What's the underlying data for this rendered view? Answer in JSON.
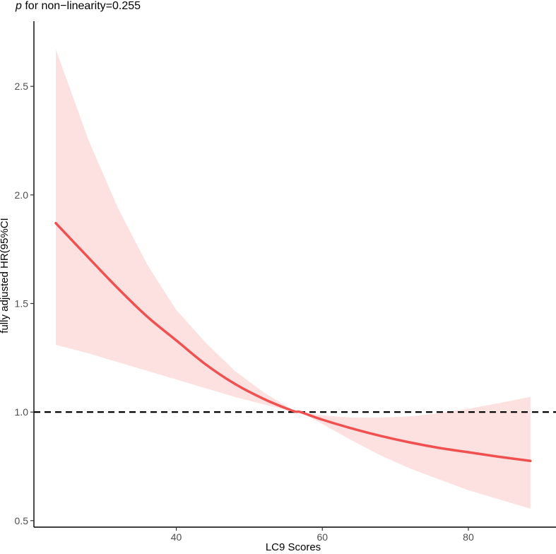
{
  "chart_data": {
    "type": "line",
    "title_prefix": "p",
    "title_rest": " for non−linearity=0.255",
    "xlabel": "LC9 Scores",
    "ylabel": "fully adjusted HR(95%CI",
    "xlim": [
      20.5,
      92
    ],
    "ylim": [
      0.47,
      2.8
    ],
    "x_ticks": [
      40,
      60,
      80
    ],
    "x_tick_labels": [
      "40",
      "60",
      "80"
    ],
    "y_ticks": [
      0.5,
      1.0,
      1.5,
      2.0,
      2.5
    ],
    "y_tick_labels": [
      "0.5",
      "1.0",
      "1.5",
      "2.0",
      "2.5"
    ],
    "reference_line": {
      "y": 1.0,
      "style": "dashed",
      "color": "#000000"
    },
    "colors": {
      "line": "#f0504f",
      "band": "#fde0e0"
    },
    "grid": false,
    "series": [
      {
        "x": [
          23.5,
          28,
          32,
          36,
          40,
          44,
          48,
          52,
          56,
          57,
          60,
          64,
          68,
          72,
          76,
          80,
          84,
          88.5
        ],
        "y": [
          1.87,
          1.71,
          1.57,
          1.44,
          1.33,
          1.22,
          1.13,
          1.06,
          1.005,
          1.0,
          0.965,
          0.925,
          0.89,
          0.86,
          0.835,
          0.815,
          0.795,
          0.775
        ],
        "lower": [
          1.31,
          1.27,
          1.23,
          1.19,
          1.15,
          1.11,
          1.07,
          1.035,
          1.003,
          1.0,
          0.945,
          0.87,
          0.8,
          0.74,
          0.69,
          0.64,
          0.6,
          0.555
        ],
        "upper": [
          2.67,
          2.25,
          1.94,
          1.68,
          1.47,
          1.32,
          1.19,
          1.09,
          1.008,
          1.0,
          0.985,
          0.975,
          0.975,
          0.98,
          0.995,
          1.015,
          1.04,
          1.07
        ]
      }
    ]
  }
}
